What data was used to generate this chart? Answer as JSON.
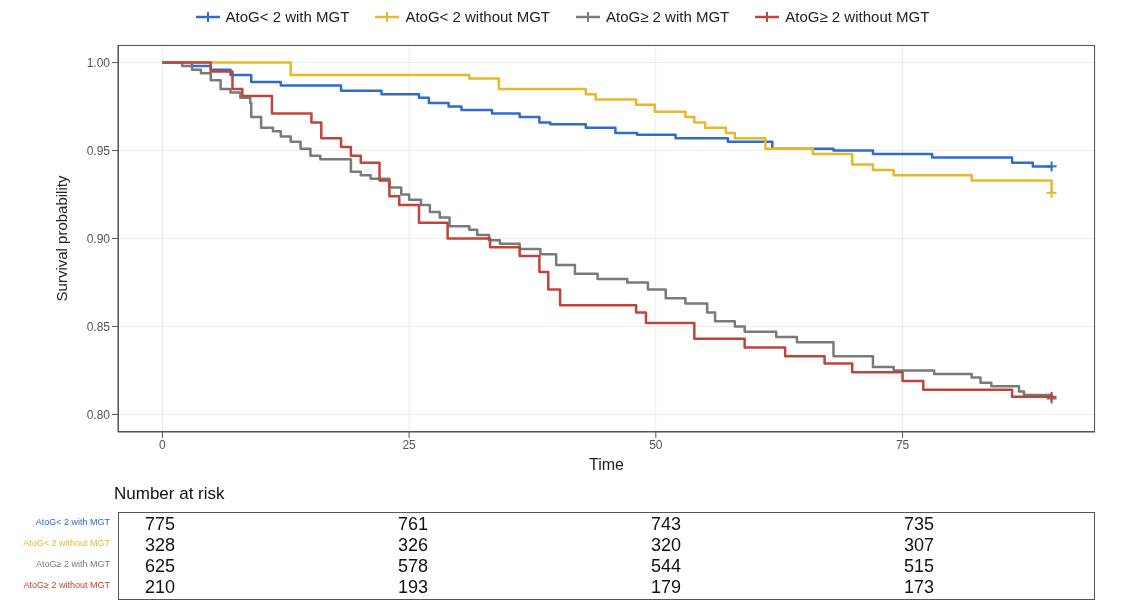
{
  "chart_data": [
    {
      "type": "step",
      "xlabel": "Time",
      "ylabel": "Survival probability",
      "legend": "top",
      "grid": true,
      "xlim": [
        -4.5,
        94.5
      ],
      "xticks": [
        0,
        25,
        50,
        75
      ],
      "ylim": [
        0.79,
        1.01
      ],
      "yticks": [
        {
          "value": 0.8,
          "label": "0.80"
        },
        {
          "value": 0.85,
          "label": "0.85"
        },
        {
          "value": 0.9,
          "label": "0.90"
        },
        {
          "value": 0.95,
          "label": "0.95"
        },
        {
          "value": 1.0,
          "label": "1.00"
        }
      ],
      "series": [
        {
          "name": "AtoG< 2 with MGT",
          "color": "#2f6ccb",
          "x": [
            0,
            3,
            4.9,
            6.9,
            9,
            12,
            18.1,
            22.2,
            26,
            27,
            29,
            30.3,
            33.4,
            36.2,
            38.2,
            39.3,
            42.9,
            45.9,
            48.1,
            52,
            57.3,
            61.8,
            68,
            72,
            78,
            86.1,
            88.2,
            90.1
          ],
          "values": [
            1.0,
            0.998,
            0.996,
            0.993,
            0.989,
            0.987,
            0.984,
            0.982,
            0.98,
            0.977,
            0.975,
            0.973,
            0.971,
            0.969,
            0.966,
            0.965,
            0.963,
            0.96,
            0.959,
            0.957,
            0.955,
            0.951,
            0.95,
            0.948,
            0.946,
            0.943,
            0.941,
            0.941
          ]
        },
        {
          "name": "AtoG< 2 without MGT",
          "color": "#e6b92b",
          "x": [
            0,
            13,
            31.1,
            34.1,
            42.9,
            43.9,
            48,
            49.9,
            53,
            53.9,
            55,
            57.1,
            58,
            61.1,
            65.9,
            69.9,
            72,
            74.1,
            82,
            90.1
          ],
          "values": [
            1.0,
            0.993,
            0.991,
            0.985,
            0.982,
            0.979,
            0.976,
            0.972,
            0.969,
            0.966,
            0.963,
            0.96,
            0.957,
            0.951,
            0.948,
            0.942,
            0.939,
            0.936,
            0.933,
            0.926
          ]
        },
        {
          "name": "AtoG≥ 2 with MGT",
          "color": "#7a7a7a",
          "x": [
            0,
            2,
            3,
            3.9,
            4.9,
            5.9,
            6.9,
            7.9,
            8.9,
            9.0,
            10,
            11.2,
            12,
            13,
            14,
            15,
            16,
            19.1,
            20.1,
            21.1,
            23,
            24.2,
            25,
            26.2,
            27.1,
            28.1,
            29.1,
            31.1,
            31.9,
            33.1,
            34.2,
            36.2,
            38.3,
            39.9,
            41.8,
            44.1,
            47.1,
            49.2,
            51,
            53,
            55.2,
            56,
            58,
            59,
            62.2,
            64.3,
            68,
            72,
            74.1,
            78.2,
            82,
            82.9,
            84,
            86.8,
            87.3,
            90.1
          ],
          "values": [
            1.0,
            0.998,
            0.996,
            0.994,
            0.99,
            0.985,
            0.983,
            0.98,
            0.977,
            0.969,
            0.963,
            0.961,
            0.958,
            0.955,
            0.951,
            0.947,
            0.945,
            0.938,
            0.936,
            0.934,
            0.929,
            0.925,
            0.922,
            0.919,
            0.915,
            0.912,
            0.907,
            0.905,
            0.902,
            0.899,
            0.897,
            0.894,
            0.891,
            0.885,
            0.88,
            0.877,
            0.875,
            0.871,
            0.866,
            0.863,
            0.858,
            0.853,
            0.85,
            0.847,
            0.844,
            0.841,
            0.833,
            0.827,
            0.825,
            0.823,
            0.821,
            0.818,
            0.816,
            0.813,
            0.811,
            0.809
          ]
        },
        {
          "name": "AtoG≥ 2 without MGT",
          "color": "#c0443c",
          "x": [
            0,
            4.9,
            7.1,
            8.1,
            11.1,
            15.1,
            16.1,
            18.1,
            19.1,
            20.1,
            22,
            23,
            24,
            26,
            28.9,
            33.2,
            36.2,
            38.2,
            39.1,
            40.3,
            48,
            49,
            53.9,
            59,
            63.1,
            67.1,
            69.9,
            75,
            77.1,
            86.1,
            90.1
          ],
          "values": [
            1.0,
            0.995,
            0.985,
            0.981,
            0.971,
            0.966,
            0.957,
            0.952,
            0.947,
            0.943,
            0.933,
            0.924,
            0.919,
            0.909,
            0.9,
            0.895,
            0.89,
            0.881,
            0.871,
            0.862,
            0.858,
            0.852,
            0.843,
            0.838,
            0.833,
            0.829,
            0.824,
            0.819,
            0.814,
            0.81,
            0.81
          ]
        }
      ]
    },
    {
      "type": "heatmap",
      "title": "Number at risk",
      "data_labels": true,
      "categories": [
        null,
        null,
        null,
        null
      ],
      "y_categories": [
        "AtoG< 2 with MGT",
        "AtoG< 2 without MGT",
        "AtoG≥ 2 with MGT",
        "AtoG≥ 2 without MGT"
      ],
      "cells": [
        [
          775,
          761,
          743,
          735
        ],
        [
          328,
          326,
          320,
          307
        ],
        [
          625,
          578,
          544,
          515
        ],
        [
          210,
          193,
          179,
          173
        ]
      ]
    }
  ]
}
